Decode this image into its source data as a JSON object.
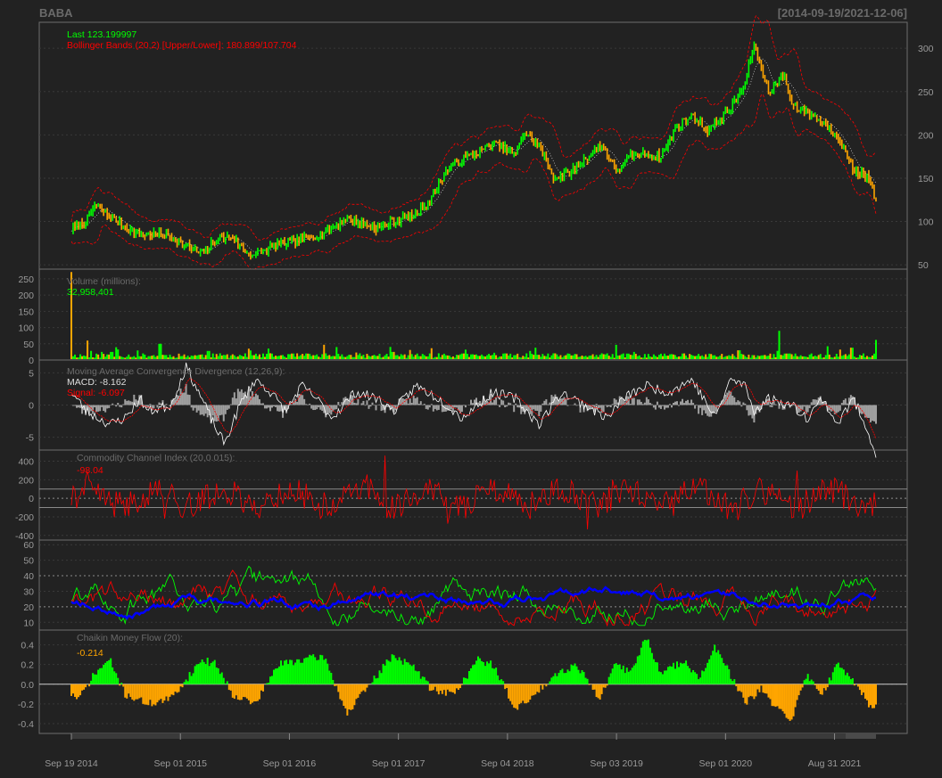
{
  "chart_data": {
    "type": "line",
    "symbol": "BABA",
    "date_range": "[2014-09-19/2021-12-06]",
    "x_ticks": [
      "Sep 19 2014",
      "Sep 01 2015",
      "Sep 01 2016",
      "Sep 01 2017",
      "Sep 04 2018",
      "Sep 03 2019",
      "Sep 01 2020",
      "Aug 31 2021"
    ],
    "colors": {
      "up": "#00ff00",
      "down": "#ffa500",
      "bands": "#ff0000",
      "sma": "#ffffff",
      "macd": "#ffffff",
      "signal": "#ff0000",
      "cci": "#ff0000",
      "adx": "#0000ff",
      "dip": "#00ff00",
      "din": "#ff0000",
      "cmf_pos": "#00ff00",
      "cmf_neg": "#ffa500",
      "hist": "#a0a0a0"
    },
    "price": {
      "legend": [
        "Last 123.199997",
        "Bollinger Bands (20,2) [Upper/Lower]: 180.899/107.704"
      ],
      "ylim": [
        45,
        330
      ],
      "yticks": [
        50,
        100,
        150,
        200,
        250,
        300
      ],
      "close": [
        [
          0,
          91
        ],
        [
          0.02,
          100
        ],
        [
          0.03,
          118
        ],
        [
          0.06,
          100
        ],
        [
          0.09,
          84
        ],
        [
          0.12,
          86
        ],
        [
          0.15,
          72
        ],
        [
          0.17,
          62
        ],
        [
          0.19,
          80
        ],
        [
          0.21,
          82
        ],
        [
          0.23,
          63
        ],
        [
          0.24,
          62
        ],
        [
          0.27,
          74
        ],
        [
          0.29,
          76
        ],
        [
          0.32,
          84
        ],
        [
          0.34,
          92
        ],
        [
          0.36,
          104
        ],
        [
          0.38,
          98
        ],
        [
          0.4,
          92
        ],
        [
          0.42,
          100
        ],
        [
          0.45,
          108
        ],
        [
          0.47,
          128
        ],
        [
          0.49,
          160
        ],
        [
          0.51,
          172
        ],
        [
          0.53,
          180
        ],
        [
          0.55,
          190
        ],
        [
          0.58,
          178
        ],
        [
          0.59,
          203
        ],
        [
          0.61,
          188
        ],
        [
          0.63,
          150
        ],
        [
          0.65,
          156
        ],
        [
          0.67,
          172
        ],
        [
          0.69,
          188
        ],
        [
          0.7,
          178
        ],
        [
          0.71,
          158
        ],
        [
          0.73,
          175
        ],
        [
          0.75,
          178
        ],
        [
          0.77,
          175
        ],
        [
          0.79,
          210
        ],
        [
          0.81,
          222
        ],
        [
          0.83,
          205
        ],
        [
          0.86,
          230
        ],
        [
          0.88,
          260
        ],
        [
          0.89,
          306
        ],
        [
          0.91,
          250
        ],
        [
          0.93,
          270
        ],
        [
          0.94,
          235
        ],
        [
          0.96,
          226
        ],
        [
          0.98,
          215
        ],
        [
          1.0,
          200
        ],
        [
          1.02,
          160
        ],
        [
          1.04,
          150
        ],
        [
          1.05,
          123
        ]
      ]
    },
    "volume": {
      "title": "Volume (millions):",
      "last": "32,958,401",
      "yticks": [
        0,
        50,
        100,
        150,
        200,
        250
      ],
      "ylim": [
        0,
        280
      ],
      "base": 16,
      "spikes": [
        [
          0.0,
          271
        ],
        [
          0.02,
          60
        ],
        [
          0.05,
          25
        ],
        [
          0.11,
          50
        ],
        [
          0.17,
          28
        ],
        [
          0.22,
          35
        ],
        [
          0.33,
          40
        ],
        [
          0.4,
          25
        ],
        [
          0.49,
          32
        ],
        [
          0.57,
          28
        ],
        [
          0.7,
          25
        ],
        [
          0.83,
          30
        ],
        [
          0.88,
          90
        ],
        [
          0.89,
          20
        ],
        [
          0.97,
          38
        ],
        [
          1.0,
          62
        ]
      ]
    },
    "macd": {
      "title": "Moving Average Convergence Divergence (12,26,9):",
      "macd_label": "MACD: -8.162",
      "signal_label": "Signal: -6.097",
      "yticks": [
        -5,
        0,
        5
      ],
      "ylim": [
        -7,
        7
      ],
      "series": [
        [
          0,
          2
        ],
        [
          0.02,
          -1
        ],
        [
          0.05,
          -3
        ],
        [
          0.07,
          -2
        ],
        [
          0.09,
          1
        ],
        [
          0.1,
          -1
        ],
        [
          0.13,
          0
        ],
        [
          0.15,
          6
        ],
        [
          0.17,
          1
        ],
        [
          0.19,
          -4
        ],
        [
          0.2,
          -6
        ],
        [
          0.22,
          0
        ],
        [
          0.24,
          4
        ],
        [
          0.26,
          2
        ],
        [
          0.28,
          -1
        ],
        [
          0.3,
          3
        ],
        [
          0.32,
          1
        ],
        [
          0.34,
          -2
        ],
        [
          0.37,
          2
        ],
        [
          0.4,
          1
        ],
        [
          0.42,
          -1
        ],
        [
          0.45,
          3
        ],
        [
          0.48,
          1
        ],
        [
          0.51,
          -2
        ],
        [
          0.55,
          2
        ],
        [
          0.58,
          1
        ],
        [
          0.61,
          -3
        ],
        [
          0.64,
          2
        ],
        [
          0.67,
          0
        ],
        [
          0.7,
          -2
        ],
        [
          0.72,
          1
        ],
        [
          0.75,
          3
        ],
        [
          0.78,
          2
        ],
        [
          0.81,
          4
        ],
        [
          0.84,
          -2
        ],
        [
          0.86,
          4
        ],
        [
          0.88,
          3
        ],
        [
          0.89,
          -1
        ],
        [
          0.91,
          1
        ],
        [
          0.94,
          0
        ],
        [
          0.96,
          -2
        ],
        [
          0.98,
          1
        ],
        [
          1.0,
          -3
        ],
        [
          1.02,
          1
        ],
        [
          1.04,
          -4
        ],
        [
          1.05,
          -8
        ]
      ]
    },
    "cci": {
      "title": "Commodity Channel Index (20,0.015):",
      "last": "-98.04",
      "yticks": [
        -400,
        -200,
        0,
        200,
        400
      ],
      "ylim": [
        -450,
        520
      ],
      "levels": [
        100,
        -100
      ]
    },
    "dmi": {
      "yticks": [
        10,
        20,
        30,
        40,
        50,
        60
      ],
      "ylim": [
        5,
        63
      ],
      "levels": [
        20,
        40
      ]
    },
    "cmf": {
      "title": "Chaikin Money Flow (20):",
      "last": "-0.214",
      "yticks": [
        -0.4,
        -0.2,
        0.0,
        0.2,
        0.4
      ],
      "ylim": [
        -0.5,
        0.55
      ],
      "series": [
        [
          0,
          -0.1
        ],
        [
          0.01,
          -0.15
        ],
        [
          0.03,
          0.1
        ],
        [
          0.05,
          0.25
        ],
        [
          0.07,
          -0.1
        ],
        [
          0.1,
          -0.2
        ],
        [
          0.13,
          -0.15
        ],
        [
          0.17,
          0.25
        ],
        [
          0.19,
          0.2
        ],
        [
          0.21,
          -0.1
        ],
        [
          0.24,
          -0.2
        ],
        [
          0.27,
          0.2
        ],
        [
          0.3,
          0.25
        ],
        [
          0.33,
          0.28
        ],
        [
          0.36,
          -0.3
        ],
        [
          0.38,
          -0.1
        ],
        [
          0.4,
          0.1
        ],
        [
          0.42,
          0.3
        ],
        [
          0.45,
          0.15
        ],
        [
          0.47,
          -0.05
        ],
        [
          0.5,
          -0.1
        ],
        [
          0.53,
          0.25
        ],
        [
          0.55,
          0.2
        ],
        [
          0.58,
          -0.25
        ],
        [
          0.6,
          -0.15
        ],
        [
          0.63,
          0.1
        ],
        [
          0.66,
          0.2
        ],
        [
          0.69,
          -0.15
        ],
        [
          0.71,
          0.2
        ],
        [
          0.73,
          0.12
        ],
        [
          0.75,
          0.48
        ],
        [
          0.77,
          0.1
        ],
        [
          0.8,
          0.25
        ],
        [
          0.82,
          0.05
        ],
        [
          0.84,
          0.38
        ],
        [
          0.86,
          0.1
        ],
        [
          0.88,
          -0.2
        ],
        [
          0.9,
          -0.05
        ],
        [
          0.92,
          -0.25
        ],
        [
          0.94,
          -0.35
        ],
        [
          0.96,
          0.1
        ],
        [
          0.98,
          -0.1
        ],
        [
          1.0,
          0.2
        ],
        [
          1.02,
          0.05
        ],
        [
          1.04,
          -0.2
        ],
        [
          1.05,
          -0.21
        ]
      ]
    }
  }
}
